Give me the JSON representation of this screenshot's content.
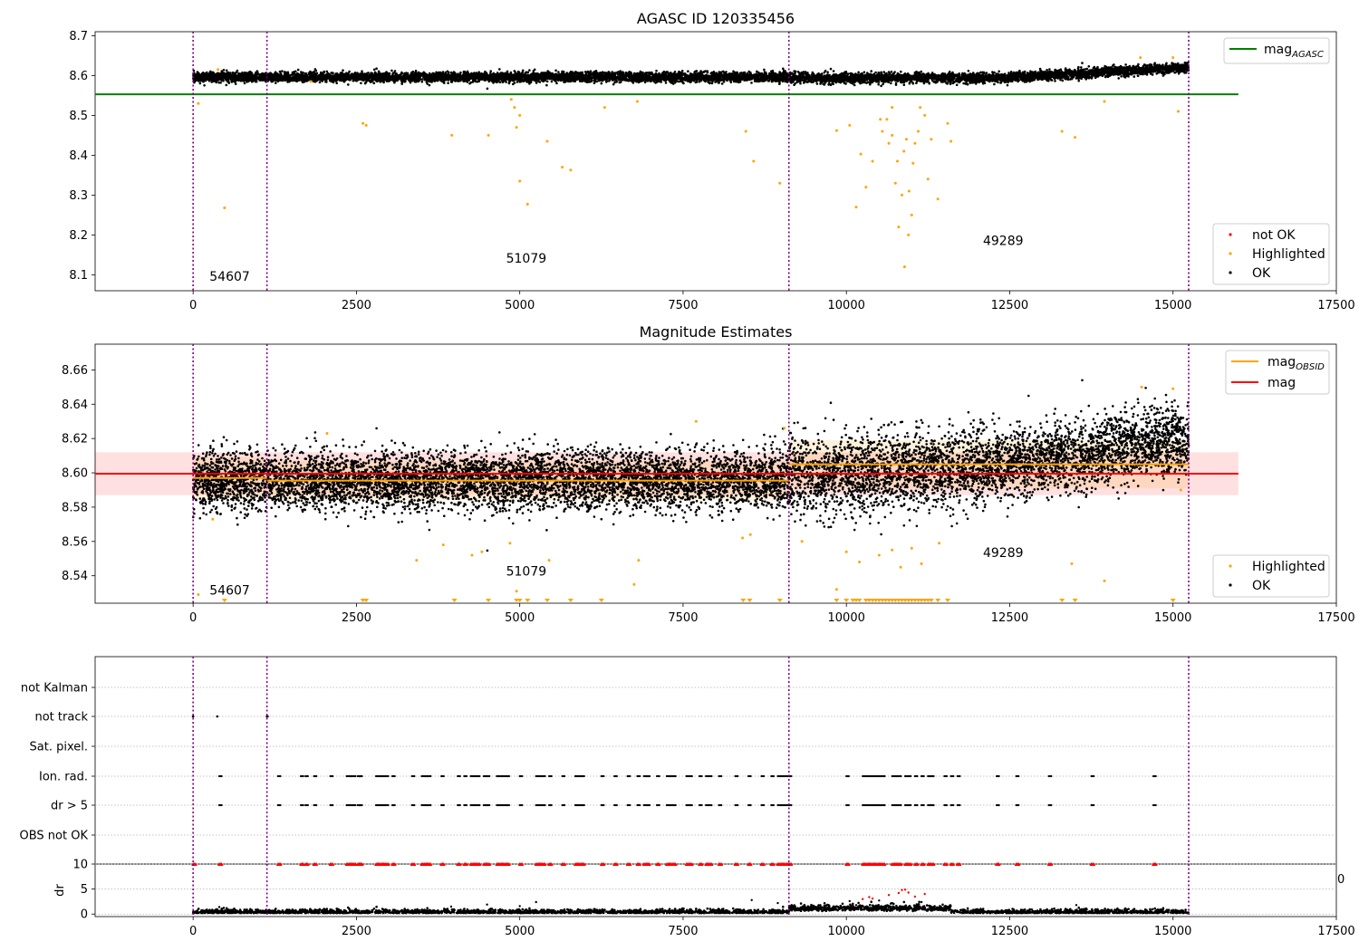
{
  "figure_title": "AGASC ID 120335456",
  "chart_data": [
    {
      "type": "scatter",
      "title": "AGASC ID 120335456",
      "xlim": [
        -1500,
        17500
      ],
      "ylim": [
        8.06,
        8.71
      ],
      "xticks": [
        0,
        2500,
        5000,
        7500,
        10000,
        12500,
        15000,
        17500
      ],
      "yticks": [
        8.1,
        8.2,
        8.3,
        8.4,
        8.5,
        8.6,
        8.7
      ],
      "ytick_labels": [
        "8.1",
        "8.2",
        "8.3",
        "8.4",
        "8.5",
        "8.6",
        "8.7"
      ],
      "vlines": [
        0,
        1130,
        9120,
        15240
      ],
      "hline": {
        "name": "mag",
        "subscript": "AGASC",
        "y": 8.553,
        "x_range": [
          -1500,
          16000
        ],
        "color": "#008000"
      },
      "annotations": [
        {
          "text": "54607",
          "x": 560,
          "y": 8.085
        },
        {
          "text": "51079",
          "x": 5100,
          "y": 8.13
        },
        {
          "text": "49289",
          "x": 12400,
          "y": 8.175
        }
      ],
      "series": [
        {
          "name": "not OK",
          "color": "#ff0000"
        },
        {
          "name": "Highlighted",
          "color": "#ffa500",
          "points": [
            [
              80,
              8.53
            ],
            [
              380,
              8.615
            ],
            [
              480,
              8.268
            ],
            [
              1800,
              8.585
            ],
            [
              2600,
              8.48
            ],
            [
              2650,
              8.475
            ],
            [
              3960,
              8.45
            ],
            [
              4520,
              8.45
            ],
            [
              4870,
              8.54
            ],
            [
              4920,
              8.52
            ],
            [
              4950,
              8.47
            ],
            [
              5000,
              8.335
            ],
            [
              5120,
              8.277
            ],
            [
              5420,
              8.435
            ],
            [
              5650,
              8.37
            ],
            [
              5780,
              8.363
            ],
            [
              8460,
              8.46
            ],
            [
              8580,
              8.385
            ],
            [
              8980,
              8.33
            ],
            [
              9850,
              8.462
            ],
            [
              10050,
              8.475
            ],
            [
              10150,
              8.27
            ],
            [
              10220,
              8.403
            ],
            [
              10400,
              8.385
            ],
            [
              10550,
              8.46
            ],
            [
              10620,
              8.49
            ],
            [
              10700,
              8.52
            ],
            [
              10780,
              8.385
            ],
            [
              10800,
              8.22
            ],
            [
              10850,
              8.3
            ],
            [
              10880,
              8.41
            ],
            [
              10920,
              8.44
            ],
            [
              10950,
              8.2
            ],
            [
              11000,
              8.25
            ],
            [
              11050,
              8.43
            ],
            [
              11100,
              8.46
            ],
            [
              11200,
              8.5
            ],
            [
              11250,
              8.34
            ],
            [
              11300,
              8.44
            ],
            [
              11400,
              8.29
            ],
            [
              11550,
              8.48
            ],
            [
              11600,
              8.435
            ],
            [
              10890,
              8.12
            ],
            [
              10700,
              8.45
            ],
            [
              10750,
              8.33
            ],
            [
              13300,
              8.46
            ],
            [
              13500,
              8.445
            ],
            [
              13950,
              8.535
            ],
            [
              15080,
              8.51
            ],
            [
              14500,
              8.645
            ],
            [
              15000,
              8.645
            ],
            [
              10520,
              8.49
            ],
            [
              10650,
              8.43
            ],
            [
              11020,
              8.38
            ],
            [
              11130,
              8.52
            ],
            [
              10300,
              8.32
            ],
            [
              10960,
              8.31
            ],
            [
              5000,
              8.5
            ],
            [
              6300,
              8.52
            ],
            [
              6800,
              8.535
            ]
          ]
        },
        {
          "name": "OK",
          "color": "#000000"
        }
      ],
      "legend": {
        "lines": "top-right",
        "markers": "bottom-right"
      }
    },
    {
      "type": "scatter",
      "title": "Magnitude Estimates",
      "xlim": [
        -1500,
        17500
      ],
      "ylim": [
        8.524,
        8.675
      ],
      "xticks": [
        0,
        2500,
        5000,
        7500,
        10000,
        12500,
        15000,
        17500
      ],
      "yticks": [
        8.54,
        8.56,
        8.58,
        8.6,
        8.62,
        8.64,
        8.66
      ],
      "ytick_labels": [
        "8.54",
        "8.56",
        "8.58",
        "8.60",
        "8.62",
        "8.64",
        "8.66"
      ],
      "vlines": [
        0,
        1130,
        9120,
        15240
      ],
      "mag": {
        "name": "mag",
        "y": 8.5995,
        "band": [
          8.587,
          8.612
        ],
        "x_range": [
          -1500,
          16000
        ],
        "color": "#ff0000"
      },
      "mag_obsid": {
        "name": "mag",
        "subscript": "OBSID",
        "color": "#ffa500",
        "segments": [
          {
            "x": [
              0,
              1130
            ],
            "y": 8.597,
            "band": [
              8.585,
              8.609
            ]
          },
          {
            "x": [
              1130,
              9120
            ],
            "y": 8.5955,
            "band": [
              8.584,
              8.607
            ]
          },
          {
            "x": [
              9120,
              15240
            ],
            "y": 8.605,
            "band": [
              8.591,
              8.619
            ]
          }
        ]
      },
      "annotations": [
        {
          "text": "54607",
          "x": 560,
          "y": 8.529
        },
        {
          "text": "51079",
          "x": 5100,
          "y": 8.54
        },
        {
          "text": "49289",
          "x": 12400,
          "y": 8.551
        }
      ],
      "series": [
        {
          "name": "Highlighted",
          "color": "#ffa500",
          "points": [
            [
              80,
              8.529
            ],
            [
              300,
              8.573
            ],
            [
              2050,
              8.623
            ],
            [
              3420,
              8.549
            ],
            [
              3830,
              8.558
            ],
            [
              4270,
              8.552
            ],
            [
              4420,
              8.554
            ],
            [
              4850,
              8.559
            ],
            [
              4950,
              8.531
            ],
            [
              5450,
              8.549
            ],
            [
              6750,
              8.535
            ],
            [
              6820,
              8.549
            ],
            [
              7700,
              8.63
            ],
            [
              8410,
              8.562
            ],
            [
              8530,
              8.564
            ],
            [
              9050,
              8.626
            ],
            [
              9320,
              8.56
            ],
            [
              9850,
              8.532
            ],
            [
              10000,
              8.554
            ],
            [
              10200,
              8.548
            ],
            [
              10500,
              8.552
            ],
            [
              10700,
              8.555
            ],
            [
              10830,
              8.545
            ],
            [
              11000,
              8.556
            ],
            [
              11150,
              8.547
            ],
            [
              11420,
              8.559
            ],
            [
              13450,
              8.547
            ],
            [
              13950,
              8.537
            ],
            [
              14520,
              8.65
            ],
            [
              15000,
              8.649
            ],
            [
              15120,
              8.59
            ]
          ]
        },
        {
          "name": "OK",
          "color": "#000000"
        }
      ],
      "legend": {
        "lines": "top-right",
        "markers": "bottom-right"
      }
    },
    {
      "type": "scatter",
      "title": "",
      "xlim": [
        -1500,
        17500
      ],
      "categories": [
        "not Kalman",
        "not track",
        "Sat. pixel.",
        "Ion. rad.",
        "dr > 5",
        "OBS not OK"
      ],
      "vlines": [
        0,
        1130,
        9120,
        15240
      ],
      "not_track_x": [
        0,
        370,
        1130,
        1140
      ],
      "flag_x": [
        400,
        1300,
        1650,
        1720,
        1850,
        2100,
        2350,
        2400,
        2450,
        2520,
        2550,
        2800,
        2850,
        2900,
        2950,
        3050,
        3350,
        3500,
        3550,
        3600,
        3800,
        4050,
        4150,
        4250,
        4300,
        4350,
        4450,
        4500,
        4650,
        4700,
        4750,
        4800,
        5000,
        5250,
        5300,
        5350,
        5450,
        5650,
        5850,
        5900,
        5950,
        6250,
        6450,
        6650,
        6800,
        6900,
        6950,
        7100,
        7250,
        7300,
        7350,
        7550,
        7600,
        7750,
        7850,
        7900,
        8050,
        8300,
        8500,
        8700,
        8850,
        8950,
        9000,
        9050,
        9100,
        9120,
        10000,
        10250,
        10300,
        10350,
        10400,
        10450,
        10500,
        10550,
        10700,
        10750,
        10800,
        10900,
        10950,
        11050,
        11150,
        11250,
        11300,
        11500,
        11600,
        11700,
        12300,
        12600,
        13100,
        13750,
        14700
      ]
    },
    {
      "type": "scatter",
      "title": "",
      "ylabel": "dr",
      "xlim": [
        -1500,
        17500
      ],
      "ylim": [
        -0.5,
        10
      ],
      "xticks": [
        0,
        2500,
        5000,
        7500,
        10000,
        12500,
        15000,
        17500
      ],
      "yticks": [
        0,
        5,
        10
      ],
      "clipped_label": "0",
      "vlines": [
        0,
        1130,
        9120,
        15240
      ],
      "capped_value": 10,
      "high_dr_red": [
        [
          10250,
          3.0
        ],
        [
          10350,
          3.4
        ],
        [
          10400,
          3.1
        ],
        [
          10650,
          3.8
        ],
        [
          10800,
          4.2
        ],
        [
          10850,
          4.8
        ],
        [
          10900,
          4.9
        ],
        [
          10950,
          4.3
        ],
        [
          11050,
          3.5
        ],
        [
          11200,
          4.0
        ]
      ],
      "high_dr_black": [
        [
          400,
          1.4
        ],
        [
          3950,
          1.5
        ],
        [
          4500,
          1.9
        ],
        [
          5000,
          1.6
        ],
        [
          5250,
          2.4
        ],
        [
          8550,
          2.8
        ],
        [
          8950,
          2.2
        ],
        [
          10050,
          2.6
        ],
        [
          10150,
          1.8
        ],
        [
          10500,
          2.7
        ],
        [
          10700,
          2.2
        ],
        [
          11150,
          2.4
        ],
        [
          11350,
          1.6
        ],
        [
          13520,
          1.8
        ]
      ]
    }
  ]
}
